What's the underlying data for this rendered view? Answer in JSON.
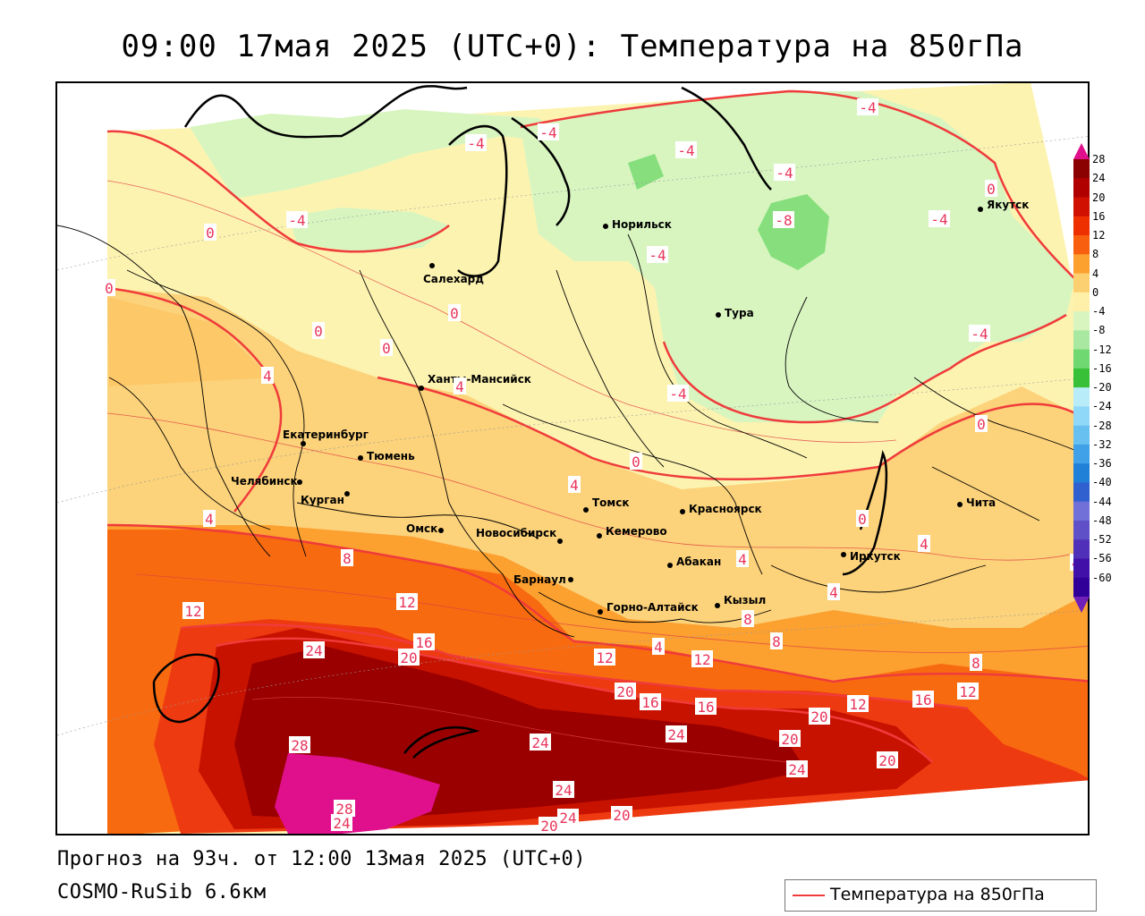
{
  "title": "09:00 17мая 2025 (UTC+0): Температура на 850гПа",
  "footer": {
    "forecast": "Прогноз на 93ч. от 12:00 13мая 2025 (UTC+0)",
    "model": "COSMO-RuSib 6.6км"
  },
  "legend": {
    "label": "Температура на 850гПа",
    "line_color": "#ef3b3b"
  },
  "colorbar": {
    "ticks": [
      "28",
      "24",
      "20",
      "16",
      "12",
      "8",
      "4",
      "0",
      "-4",
      "-8",
      "-12",
      "-16",
      "-20",
      "-24",
      "-28",
      "-32",
      "-36",
      "-40",
      "-44",
      "-48",
      "-52",
      "-56",
      "-60"
    ],
    "colors": [
      "#8b0000",
      "#b00000",
      "#d01000",
      "#ee3000",
      "#f86010",
      "#fca030",
      "#fcd070",
      "#fef0a8",
      "#d8f5c0",
      "#a8e8a0",
      "#70d870",
      "#38c038",
      "#b8ecf8",
      "#90d8f8",
      "#68c0f0",
      "#40a0e8",
      "#2080d8",
      "#3060d0",
      "#7070d8",
      "#6050c8",
      "#5030b8",
      "#4010a8",
      "#300098"
    ],
    "top_color": "#e0108c",
    "bottom_color": "#7020b8"
  },
  "cities": [
    {
      "name": "Якутск"
    },
    {
      "name": "Норильск"
    },
    {
      "name": "Салехард"
    },
    {
      "name": "Тура"
    },
    {
      "name": "Ханты-Мансийск"
    },
    {
      "name": "Екатеринбург"
    },
    {
      "name": "Тюмень"
    },
    {
      "name": "Челябинск"
    },
    {
      "name": "Курган"
    },
    {
      "name": "Омск"
    },
    {
      "name": "Томск"
    },
    {
      "name": "Красноярск"
    },
    {
      "name": "Новосибирск"
    },
    {
      "name": "Кемерово"
    },
    {
      "name": "Абакан"
    },
    {
      "name": "Иркутск"
    },
    {
      "name": "Чита"
    },
    {
      "name": "Барнаул"
    },
    {
      "name": "Горно-Алтайск"
    },
    {
      "name": "Кызыл"
    }
  ],
  "isolines": [
    "-4",
    "-4",
    "-4",
    "-4",
    "-4",
    "-4",
    "-4",
    "-4",
    "-4",
    "-4",
    "-8",
    "0",
    "0",
    "0",
    "0",
    "0",
    "0",
    "0",
    "0",
    "0",
    "4",
    "4",
    "4",
    "4",
    "4",
    "4",
    "4",
    "4",
    "4",
    "8",
    "8",
    "8",
    "8",
    "12",
    "12",
    "12",
    "12",
    "12",
    "12",
    "16",
    "16",
    "16",
    "16",
    "20",
    "20",
    "20",
    "20",
    "20",
    "20",
    "20",
    "24",
    "24",
    "24",
    "24",
    "24",
    "24",
    "24",
    "28",
    "28"
  ]
}
